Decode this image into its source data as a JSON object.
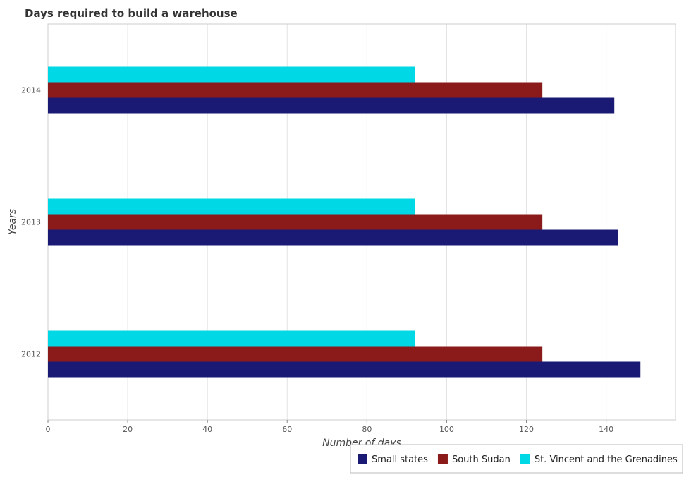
{
  "chart_data": {
    "type": "bar",
    "orientation": "horizontal",
    "title": "Days required to build a warehouse",
    "xlabel": "Number of days",
    "ylabel": "Years",
    "categories": [
      "2012",
      "2013",
      "2014"
    ],
    "series": [
      {
        "name": "Small states",
        "color": "#1a1a75",
        "values": [
          148.6,
          142.95,
          142.05
        ]
      },
      {
        "name": "South Sudan",
        "color": "#8b1a1a",
        "values": [
          124,
          124,
          124
        ]
      },
      {
        "name": "St. Vincent and the Grenadines",
        "color": "#00d8e6",
        "values": [
          92,
          92,
          92
        ]
      }
    ],
    "xlim": [
      0,
      157.4
    ],
    "xticks": [
      0,
      20,
      40,
      60,
      80,
      100,
      120,
      140
    ],
    "grid": true,
    "legend_position": "bottom-right"
  }
}
